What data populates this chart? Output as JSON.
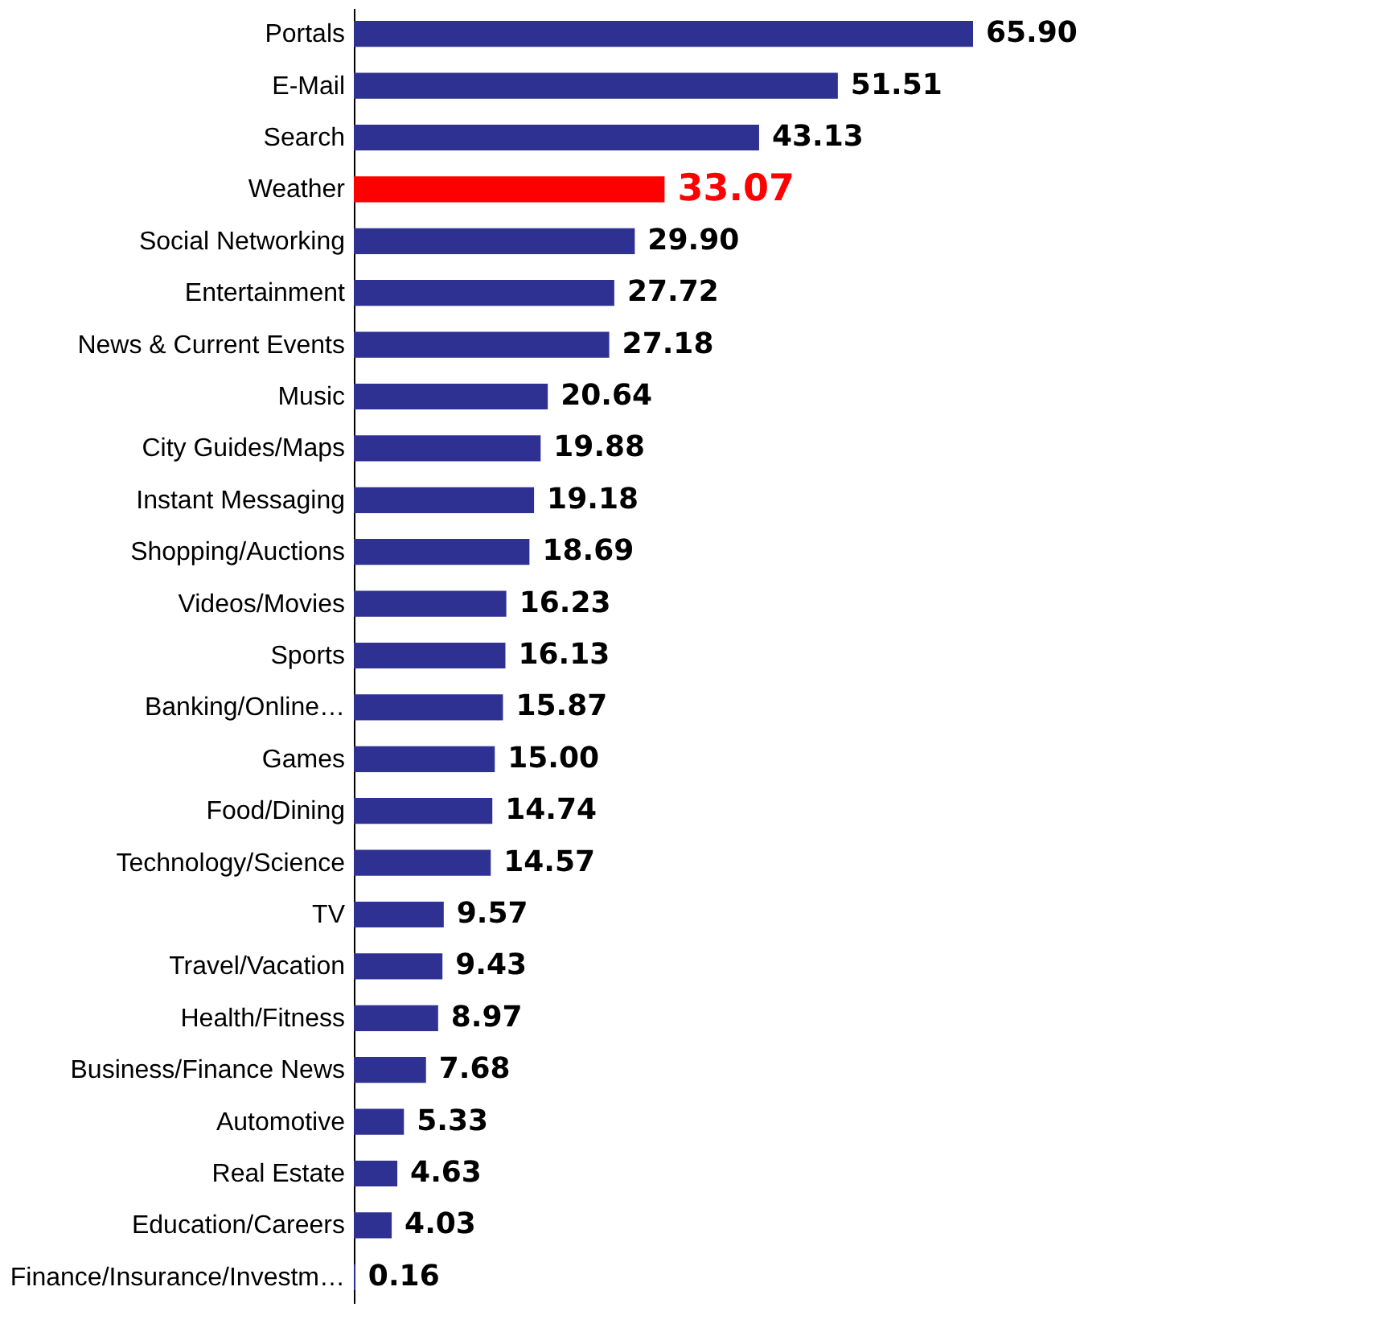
{
  "chart_data": {
    "type": "bar",
    "orientation": "horizontal",
    "grid": false,
    "value_labels": [
      "65.90",
      "51.51",
      "43.13",
      "33.07",
      "29.90",
      "27.72",
      "27.18",
      "20.64",
      "19.88",
      "19.18",
      "18.69",
      "16.23",
      "16.13",
      "15.87",
      "15.00",
      "14.74",
      "14.57",
      "9.57",
      "9.43",
      "8.97",
      "7.68",
      "5.33",
      "4.63",
      "4.03",
      "0.16"
    ],
    "categories": [
      "Portals",
      "E-Mail",
      "Search",
      "Weather",
      "Social Networking",
      "Entertainment",
      "News & Current Events",
      "Music",
      "City Guides/Maps",
      "Instant Messaging",
      "Shopping/Auctions",
      "Videos/Movies",
      "Sports",
      "Banking/Online…",
      "Games",
      "Food/Dining",
      "Technology/Science",
      "TV",
      "Travel/Vacation",
      "Health/Fitness",
      "Business/Finance News",
      "Automotive",
      "Real Estate",
      "Education/Careers",
      "Finance/Insurance/Investm…"
    ],
    "values": [
      65.9,
      51.51,
      43.13,
      33.07,
      29.9,
      27.72,
      27.18,
      20.64,
      19.88,
      19.18,
      18.69,
      16.23,
      16.13,
      15.87,
      15.0,
      14.74,
      14.57,
      9.57,
      9.43,
      8.97,
      7.68,
      5.33,
      4.63,
      4.03,
      0.16
    ],
    "colors": [
      "#2e3192",
      "#2e3192",
      "#2e3192",
      "#ff0000",
      "#2e3192",
      "#2e3192",
      "#2e3192",
      "#2e3192",
      "#2e3192",
      "#2e3192",
      "#2e3192",
      "#2e3192",
      "#2e3192",
      "#2e3192",
      "#2e3192",
      "#2e3192",
      "#2e3192",
      "#2e3192",
      "#2e3192",
      "#2e3192",
      "#2e3192",
      "#2e3192",
      "#2e3192",
      "#2e3192",
      "#2e3192"
    ]
  }
}
